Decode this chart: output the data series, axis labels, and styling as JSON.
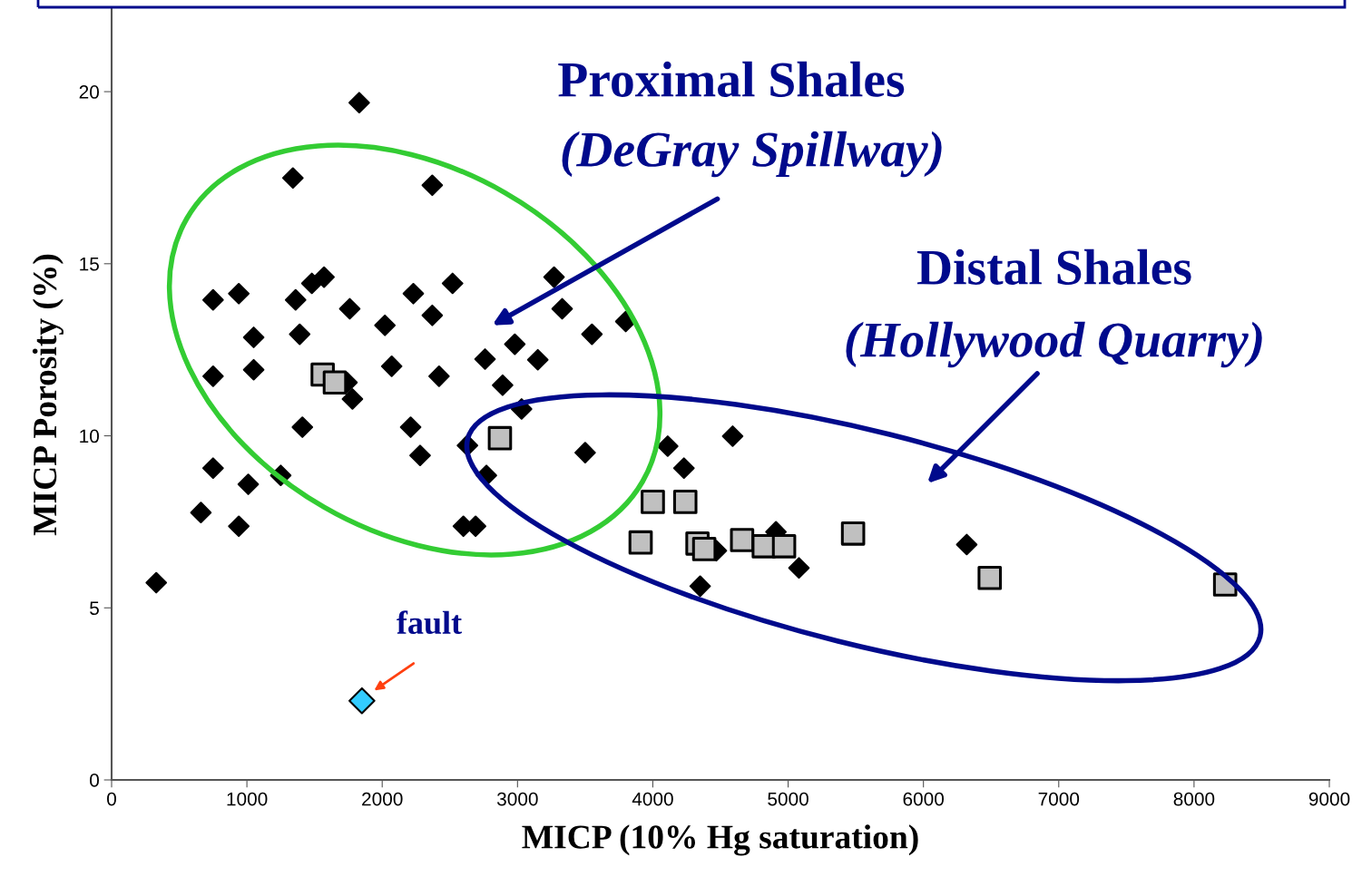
{
  "chart_data": {
    "type": "scatter",
    "xlabel": "MICP (10% Hg saturation)",
    "ylabel": "MICP Porosity (%)",
    "xlim": [
      0,
      9000
    ],
    "ylim": [
      0,
      22.4
    ],
    "xticks": [
      0,
      1000,
      2000,
      3000,
      4000,
      5000,
      6000,
      7000,
      8000,
      9000
    ],
    "yticks": [
      0,
      5,
      10,
      15,
      20
    ],
    "grid": false,
    "legend": false,
    "annotations": [
      "Proximal Shales",
      "(DeGray Spillway)",
      "Distal Shales",
      "(Hollywood Quarry)",
      "fault"
    ],
    "series": [
      {
        "color": "#000000",
        "marker": "diamond",
        "x": [
          330,
          660,
          750,
          940,
          1010,
          750,
          750,
          940,
          1050,
          1050,
          1250,
          1340,
          1360,
          1390,
          1410,
          1480,
          1570,
          1760,
          1780,
          1740,
          1830,
          2020,
          2070,
          2210,
          2230,
          2280,
          2370,
          2370,
          2420,
          2520,
          2630,
          2600,
          2690,
          2770,
          2760,
          2980,
          2890,
          3030,
          3150,
          3270,
          3330,
          3500,
          3550,
          3800,
          4110,
          4230,
          4590,
          4470,
          4350,
          4910,
          5080,
          6320
        ],
        "values": [
          5.73,
          7.77,
          9.06,
          7.37,
          8.59,
          11.73,
          13.95,
          14.13,
          12.86,
          11.92,
          8.85,
          17.49,
          13.95,
          12.95,
          10.25,
          14.43,
          14.61,
          13.69,
          11.07,
          11.55,
          19.68,
          13.21,
          12.02,
          10.25,
          14.13,
          9.43,
          17.28,
          13.5,
          11.73,
          14.43,
          9.72,
          7.37,
          7.37,
          8.85,
          12.23,
          12.66,
          11.47,
          10.78,
          12.21,
          14.61,
          13.69,
          9.51,
          12.95,
          13.32,
          9.7,
          9.06,
          9.99,
          6.66,
          5.63,
          7.21,
          6.16,
          6.84
        ]
      },
      {
        "color": "#c0c0c0",
        "marker": "square",
        "x": [
          1560,
          1650,
          2870,
          4000,
          4240,
          3910,
          4330,
          4380,
          4660,
          4820,
          4970,
          5480,
          6490,
          8230
        ],
        "values": [
          11.78,
          11.55,
          9.93,
          8.08,
          8.08,
          6.9,
          6.87,
          6.71,
          6.97,
          6.79,
          6.79,
          7.16,
          5.87,
          5.68
        ]
      },
      {
        "color": "#33ccff",
        "marker": "diamond",
        "x": [
          1850
        ],
        "values": [
          2.3
        ]
      }
    ]
  }
}
